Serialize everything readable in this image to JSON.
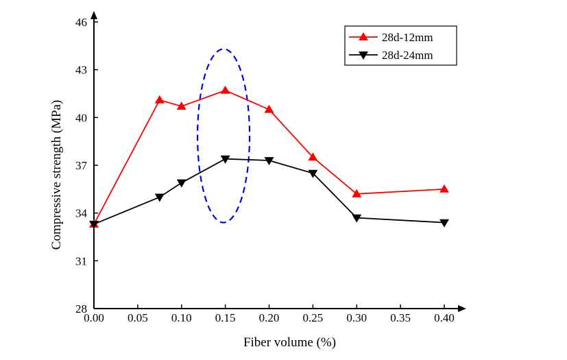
{
  "chart_data": {
    "type": "line",
    "xlabel": "Fiber volume (%)",
    "ylabel": "Compressive strength (MPa)",
    "x_ticks": [
      "0.00",
      "0.05",
      "0.10",
      "0.15",
      "0.20",
      "0.25",
      "0.30",
      "0.35",
      "0.40"
    ],
    "y_ticks": [
      "28",
      "31",
      "34",
      "37",
      "40",
      "43",
      "46"
    ],
    "xlim": [
      0,
      0.4
    ],
    "ylim": [
      28,
      46
    ],
    "grid": false,
    "legend_position": "top-right",
    "series": [
      {
        "name": "28d-12mm",
        "color": "#ff0000",
        "marker": "triangle-up",
        "x": [
          0,
          0.075,
          0.1,
          0.15,
          0.2,
          0.25,
          0.3,
          0.4
        ],
        "y": [
          33.3,
          41.1,
          40.7,
          41.7,
          40.5,
          37.5,
          35.2,
          35.5
        ]
      },
      {
        "name": "28d-24mm",
        "color": "#000000",
        "marker": "triangle-down",
        "x": [
          0,
          0.075,
          0.1,
          0.15,
          0.2,
          0.25,
          0.3,
          0.4
        ],
        "y": [
          33.3,
          35.0,
          35.9,
          37.4,
          37.3,
          36.5,
          33.7,
          33.4
        ]
      }
    ],
    "annotations": [
      {
        "type": "dashed-ellipse",
        "color": "#0000ee",
        "x_center": 0.148,
        "y_range": [
          33.4,
          44.3
        ]
      }
    ]
  }
}
